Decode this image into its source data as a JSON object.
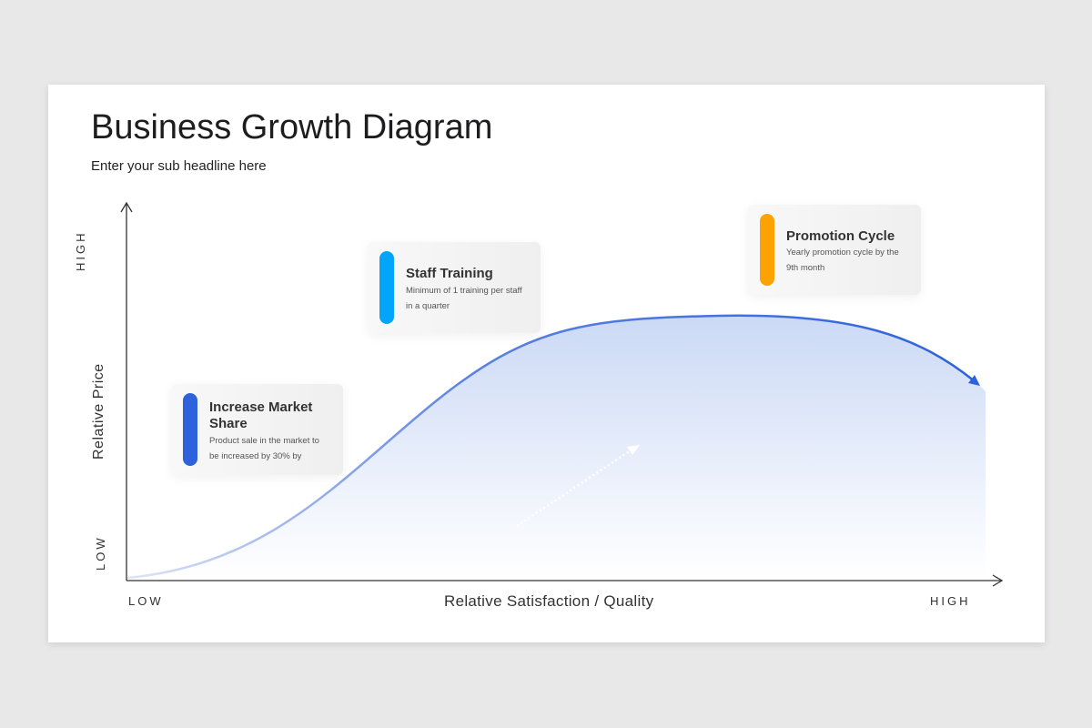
{
  "title": "Business Growth Diagram",
  "subtitle": "Enter your sub headline here",
  "axes": {
    "y_label": "Relative Price",
    "y_low": "LOW",
    "y_high": "HIGH",
    "x_label": "Relative Satisfaction / Quality",
    "x_low": "LOW",
    "x_high": "HIGH"
  },
  "cards": [
    {
      "title": "Increase Market Share",
      "desc": "Product sale in the market to be increased by 30% by",
      "color": "#2d62dc"
    },
    {
      "title": "Staff Training",
      "desc": "Minimum of 1 training per staff in a quarter",
      "color": "#03a4fb"
    },
    {
      "title": "Promotion Cycle",
      "desc": "Yearly promotion cycle by the 9th month",
      "color": "#fca203"
    }
  ],
  "colors": {
    "curve": "#2d62dc",
    "fill": "#cfdcf6"
  }
}
